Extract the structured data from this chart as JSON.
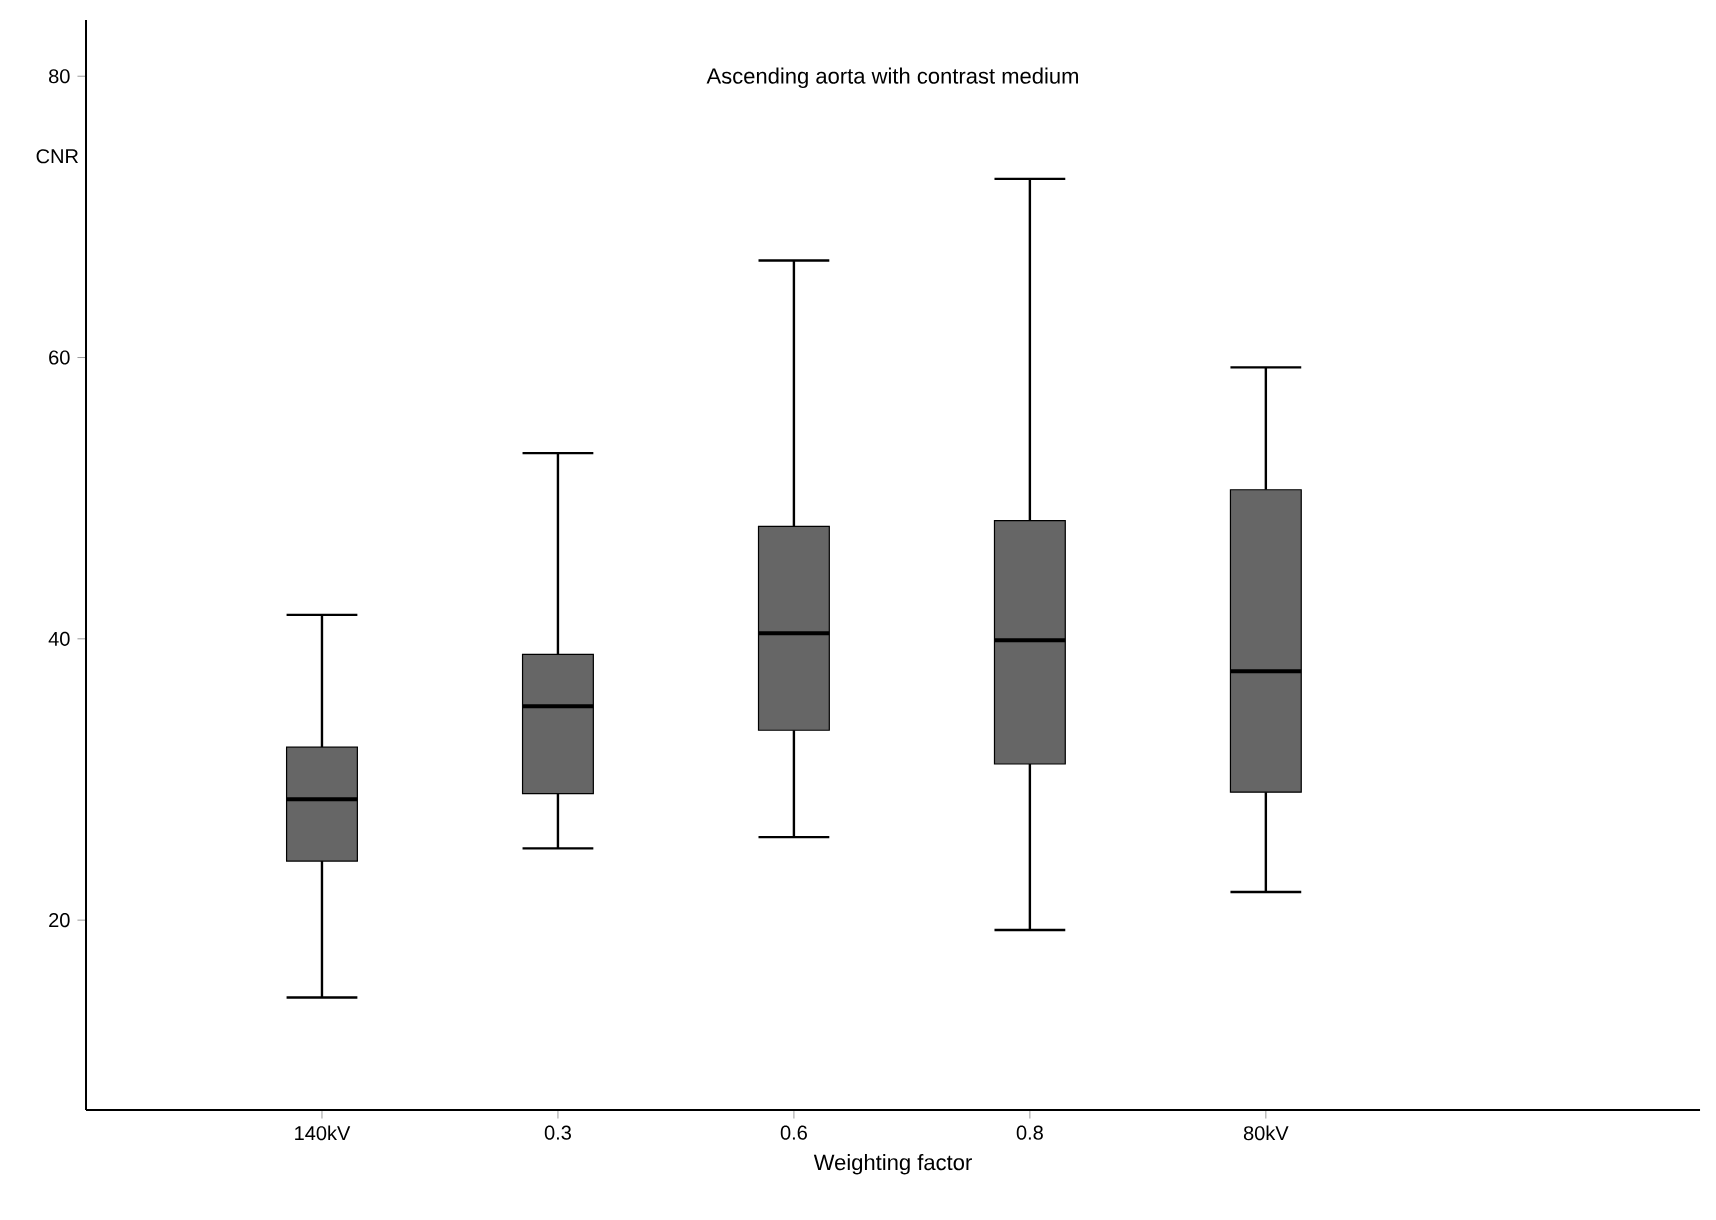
{
  "chart_data": {
    "type": "box",
    "title": "Ascending aorta with contrast medium",
    "xlabel": "Weighting factor",
    "ylabel": "CNR",
    "categories": [
      "140kV",
      "0.3",
      "0.6",
      "0.8",
      "80kV"
    ],
    "color": "#666666",
    "boxes": [
      {
        "low": 14.5,
        "q1": 24.2,
        "median": 28.6,
        "q3": 32.3,
        "high": 41.7
      },
      {
        "low": 25.1,
        "q1": 29.0,
        "median": 35.2,
        "q3": 38.9,
        "high": 53.2
      },
      {
        "low": 25.9,
        "q1": 33.5,
        "median": 40.4,
        "q3": 48.0,
        "high": 66.9
      },
      {
        "low": 19.3,
        "q1": 31.1,
        "median": 39.9,
        "q3": 48.4,
        "high": 72.7
      },
      {
        "low": 22.0,
        "q1": 29.1,
        "median": 37.7,
        "q3": 50.6,
        "high": 59.3
      }
    ],
    "ylim": [
      6.5,
      84
    ],
    "yticks": [
      20,
      40,
      60,
      80
    ]
  }
}
